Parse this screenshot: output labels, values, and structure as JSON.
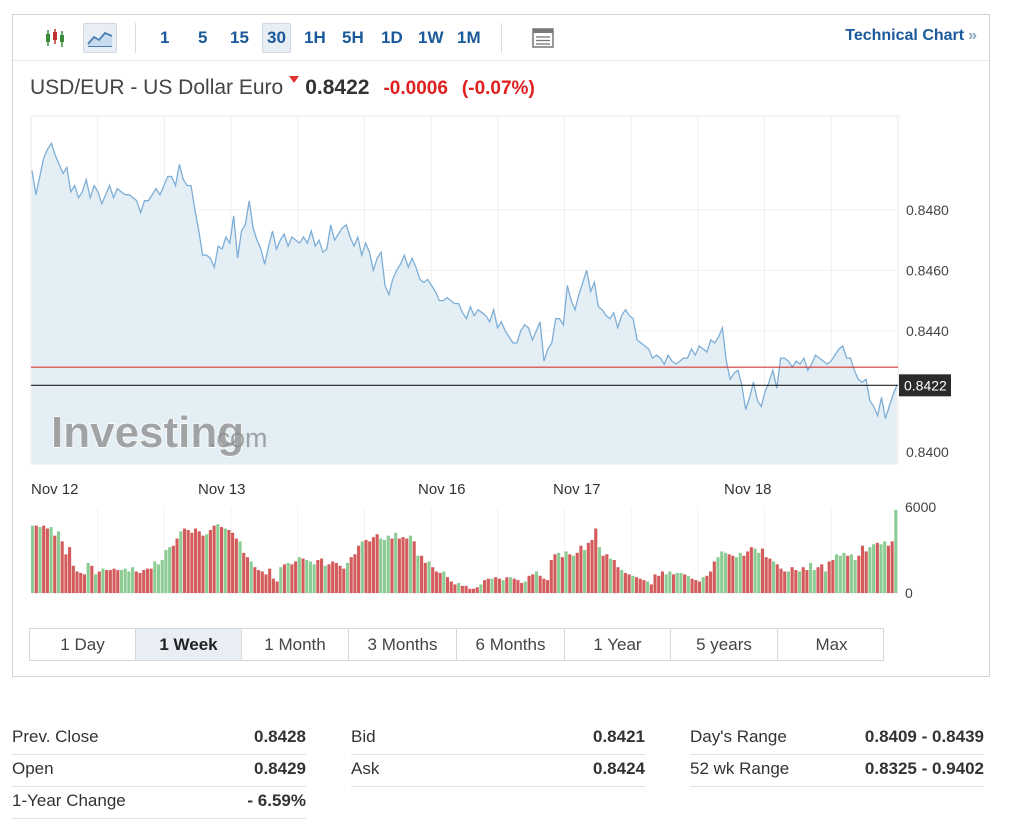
{
  "toolbar": {
    "chart_types": [
      "candlestick-icon",
      "area-chart-icon"
    ],
    "active_chart_type": "area-chart-icon",
    "intervals": [
      "1",
      "5",
      "15",
      "30",
      "1H",
      "5H",
      "1D",
      "1W",
      "1M"
    ],
    "active_interval": "30",
    "extra_icon": "table-icon",
    "technical_chart_label": "Technical Chart",
    "technical_chart_chevron": "»"
  },
  "header": {
    "pair": "USD/EUR - US Dollar Euro",
    "direction": "down",
    "last": "0.8422",
    "change": "-0.0006",
    "change_pct": "(-0.07%)"
  },
  "watermark": {
    "brand": "Investing",
    "suffix": ".com"
  },
  "colors": {
    "line": "#7eaed6",
    "area_fill": "#e4eef5",
    "prev_close_line": "#d33a3a",
    "last_line": "#222222",
    "vol_up": "#8ccc94",
    "vol_down": "#d45b5b",
    "accent": "#1a5a9b",
    "negative": "#e02020"
  },
  "chart_data": {
    "type": "area",
    "x_labels": [
      "Nov 12",
      "Nov 13",
      "Nov 16",
      "Nov 17",
      "Nov 18"
    ],
    "ylim": [
      0.8396,
      0.8511
    ],
    "y_ticks": [
      "0.8480",
      "0.8460",
      "0.8440",
      "0.8400"
    ],
    "y_tick_values": [
      0.848,
      0.846,
      0.844,
      0.84
    ],
    "last_label": "0.8422",
    "last_value": 0.8422,
    "prev_close_value": 0.8428,
    "series": [
      {
        "values": [
          0.8493,
          0.8485,
          0.8491,
          0.8497,
          0.85,
          0.8502,
          0.8498,
          0.8495,
          0.8492,
          0.8494,
          0.8486,
          0.8488,
          0.8484,
          0.8486,
          0.849,
          0.8484,
          0.8488,
          0.8486,
          0.8482,
          0.8485,
          0.8488,
          0.8484,
          0.8487,
          0.8486,
          0.8485,
          0.8485,
          0.8484,
          0.8483,
          0.8479,
          0.8483,
          0.8483,
          0.8485,
          0.8487,
          0.8485,
          0.8488,
          0.8491,
          0.8491,
          0.8488,
          0.8495,
          0.849,
          0.8488,
          0.8488,
          0.848,
          0.8473,
          0.8465,
          0.8465,
          0.8464,
          0.8461,
          0.8468,
          0.8467,
          0.8471,
          0.8469,
          0.8478,
          0.8464,
          0.8473,
          0.8475,
          0.8483,
          0.8474,
          0.847,
          0.8467,
          0.8462,
          0.8468,
          0.8473,
          0.8467,
          0.847,
          0.8472,
          0.8468,
          0.8471,
          0.847,
          0.8469,
          0.8471,
          0.8469,
          0.8473,
          0.8468,
          0.847,
          0.8466,
          0.8467,
          0.8475,
          0.847,
          0.8472,
          0.8474,
          0.8475,
          0.8471,
          0.8468,
          0.8471,
          0.8465,
          0.8469,
          0.8466,
          0.846,
          0.8464,
          0.8466,
          0.8455,
          0.8452,
          0.8457,
          0.846,
          0.8462,
          0.8465,
          0.8461,
          0.8464,
          0.8461,
          0.8457,
          0.8456,
          0.8457,
          0.8455,
          0.8453,
          0.845,
          0.845,
          0.8451,
          0.845,
          0.8449,
          0.8449,
          0.8446,
          0.8444,
          0.8448,
          0.8445,
          0.8447,
          0.8446,
          0.8445,
          0.8443,
          0.8447,
          0.8441,
          0.8443,
          0.844,
          0.8438,
          0.8436,
          0.8436,
          0.844,
          0.8442,
          0.8441,
          0.8437,
          0.844,
          0.8443,
          0.843,
          0.8434,
          0.8436,
          0.8444,
          0.8444,
          0.8442,
          0.8455,
          0.845,
          0.8447,
          0.8452,
          0.8456,
          0.846,
          0.8453,
          0.8456,
          0.8448,
          0.8447,
          0.8445,
          0.8444,
          0.8446,
          0.8441,
          0.8445,
          0.8447,
          0.8445,
          0.8444,
          0.8437,
          0.8436,
          0.8435,
          0.8434,
          0.8431,
          0.8432,
          0.8431,
          0.8429,
          0.8432,
          0.843,
          0.8429,
          0.843,
          0.8431,
          0.8431,
          0.8434,
          0.8432,
          0.8435,
          0.8434,
          0.8433,
          0.8437,
          0.8436,
          0.8438,
          0.8441,
          0.843,
          0.8424,
          0.8426,
          0.8427,
          0.8422,
          0.8414,
          0.8418,
          0.8423,
          0.8417,
          0.8415,
          0.842,
          0.8423,
          0.8427,
          0.8421,
          0.8431,
          0.8431,
          0.843,
          0.8428,
          0.843,
          0.8429,
          0.8431,
          0.8427,
          0.8429,
          0.8432,
          0.8431,
          0.843,
          0.8429,
          0.843,
          0.8432,
          0.8434,
          0.8435,
          0.8431,
          0.8431,
          0.8427,
          0.8424,
          0.8423,
          0.8424,
          0.8417,
          0.8415,
          0.8412,
          0.8418,
          0.8411,
          0.8415,
          0.8419,
          0.8422
        ]
      }
    ],
    "volume": {
      "ylim": [
        0,
        6000
      ],
      "y_ticks": [
        "6000",
        "0"
      ],
      "y_tick_values": [
        6000,
        0
      ],
      "bars": [
        [
          4700,
          "u"
        ],
        [
          4700,
          "d"
        ],
        [
          4600,
          "u"
        ],
        [
          4700,
          "d"
        ],
        [
          4500,
          "d"
        ],
        [
          4600,
          "u"
        ],
        [
          4000,
          "d"
        ],
        [
          4300,
          "u"
        ],
        [
          3600,
          "d"
        ],
        [
          2700,
          "d"
        ],
        [
          3200,
          "d"
        ],
        [
          1900,
          "d"
        ],
        [
          1500,
          "d"
        ],
        [
          1400,
          "d"
        ],
        [
          1300,
          "d"
        ],
        [
          2100,
          "u"
        ],
        [
          1900,
          "d"
        ],
        [
          1300,
          "u"
        ],
        [
          1500,
          "d"
        ],
        [
          1700,
          "u"
        ],
        [
          1600,
          "d"
        ],
        [
          1600,
          "d"
        ],
        [
          1700,
          "d"
        ],
        [
          1600,
          "d"
        ],
        [
          1600,
          "u"
        ],
        [
          1700,
          "u"
        ],
        [
          1500,
          "u"
        ],
        [
          1800,
          "u"
        ],
        [
          1500,
          "d"
        ],
        [
          1400,
          "d"
        ],
        [
          1600,
          "d"
        ],
        [
          1700,
          "d"
        ],
        [
          1700,
          "d"
        ],
        [
          2200,
          "u"
        ],
        [
          2000,
          "u"
        ],
        [
          2300,
          "u"
        ],
        [
          3000,
          "u"
        ],
        [
          3200,
          "u"
        ],
        [
          3300,
          "d"
        ],
        [
          3800,
          "d"
        ],
        [
          4300,
          "u"
        ],
        [
          4500,
          "d"
        ],
        [
          4400,
          "d"
        ],
        [
          4200,
          "d"
        ],
        [
          4500,
          "d"
        ],
        [
          4300,
          "d"
        ],
        [
          4000,
          "d"
        ],
        [
          4100,
          "u"
        ],
        [
          4400,
          "d"
        ],
        [
          4700,
          "d"
        ],
        [
          4800,
          "u"
        ],
        [
          4600,
          "d"
        ],
        [
          4500,
          "u"
        ],
        [
          4400,
          "d"
        ],
        [
          4200,
          "d"
        ],
        [
          3800,
          "d"
        ],
        [
          3600,
          "u"
        ],
        [
          2800,
          "d"
        ],
        [
          2500,
          "d"
        ],
        [
          2200,
          "u"
        ],
        [
          1800,
          "d"
        ],
        [
          1600,
          "d"
        ],
        [
          1500,
          "d"
        ],
        [
          1300,
          "d"
        ],
        [
          1700,
          "d"
        ],
        [
          1000,
          "d"
        ],
        [
          800,
          "d"
        ],
        [
          1800,
          "u"
        ],
        [
          2000,
          "d"
        ],
        [
          2100,
          "u"
        ],
        [
          2000,
          "d"
        ],
        [
          2200,
          "d"
        ],
        [
          2500,
          "u"
        ],
        [
          2400,
          "d"
        ],
        [
          2300,
          "u"
        ],
        [
          2200,
          "u"
        ],
        [
          2000,
          "u"
        ],
        [
          2300,
          "d"
        ],
        [
          2400,
          "d"
        ],
        [
          1900,
          "u"
        ],
        [
          2000,
          "d"
        ],
        [
          2200,
          "d"
        ],
        [
          2100,
          "d"
        ],
        [
          1900,
          "d"
        ],
        [
          1700,
          "d"
        ],
        [
          2100,
          "u"
        ],
        [
          2500,
          "d"
        ],
        [
          2700,
          "d"
        ],
        [
          3300,
          "d"
        ],
        [
          3600,
          "u"
        ],
        [
          3700,
          "d"
        ],
        [
          3600,
          "d"
        ],
        [
          3900,
          "d"
        ],
        [
          4100,
          "d"
        ],
        [
          3800,
          "u"
        ],
        [
          3700,
          "u"
        ],
        [
          4000,
          "u"
        ],
        [
          3800,
          "d"
        ],
        [
          4200,
          "u"
        ],
        [
          3800,
          "d"
        ],
        [
          3900,
          "d"
        ],
        [
          3800,
          "d"
        ],
        [
          4000,
          "u"
        ],
        [
          3600,
          "d"
        ],
        [
          2600,
          "u"
        ],
        [
          2600,
          "d"
        ],
        [
          2100,
          "d"
        ],
        [
          2200,
          "u"
        ],
        [
          1800,
          "d"
        ],
        [
          1500,
          "d"
        ],
        [
          1400,
          "d"
        ],
        [
          1500,
          "u"
        ],
        [
          1100,
          "d"
        ],
        [
          800,
          "d"
        ],
        [
          600,
          "d"
        ],
        [
          700,
          "u"
        ],
        [
          500,
          "d"
        ],
        [
          500,
          "d"
        ],
        [
          300,
          "d"
        ],
        [
          300,
          "d"
        ],
        [
          400,
          "d"
        ],
        [
          600,
          "u"
        ],
        [
          900,
          "d"
        ],
        [
          1000,
          "d"
        ],
        [
          1000,
          "u"
        ],
        [
          1100,
          "d"
        ],
        [
          1000,
          "d"
        ],
        [
          900,
          "u"
        ],
        [
          1100,
          "d"
        ],
        [
          1100,
          "u"
        ],
        [
          1000,
          "d"
        ],
        [
          900,
          "d"
        ],
        [
          700,
          "d"
        ],
        [
          800,
          "u"
        ],
        [
          1200,
          "d"
        ],
        [
          1300,
          "d"
        ],
        [
          1500,
          "u"
        ],
        [
          1200,
          "d"
        ],
        [
          1000,
          "d"
        ],
        [
          900,
          "d"
        ],
        [
          2300,
          "d"
        ],
        [
          2700,
          "d"
        ],
        [
          2800,
          "u"
        ],
        [
          2500,
          "d"
        ],
        [
          2900,
          "u"
        ],
        [
          2700,
          "d"
        ],
        [
          2600,
          "u"
        ],
        [
          2800,
          "d"
        ],
        [
          3300,
          "d"
        ],
        [
          3000,
          "u"
        ],
        [
          3500,
          "d"
        ],
        [
          3700,
          "d"
        ],
        [
          4500,
          "d"
        ],
        [
          3200,
          "u"
        ],
        [
          2600,
          "d"
        ],
        [
          2700,
          "d"
        ],
        [
          2400,
          "u"
        ],
        [
          2300,
          "d"
        ],
        [
          1800,
          "d"
        ],
        [
          1600,
          "u"
        ],
        [
          1400,
          "d"
        ],
        [
          1300,
          "d"
        ],
        [
          1200,
          "u"
        ],
        [
          1100,
          "d"
        ],
        [
          1000,
          "d"
        ],
        [
          900,
          "d"
        ],
        [
          800,
          "u"
        ],
        [
          600,
          "d"
        ],
        [
          1300,
          "d"
        ],
        [
          1200,
          "d"
        ],
        [
          1500,
          "d"
        ],
        [
          1300,
          "u"
        ],
        [
          1500,
          "u"
        ],
        [
          1300,
          "d"
        ],
        [
          1400,
          "u"
        ],
        [
          1400,
          "u"
        ],
        [
          1300,
          "d"
        ],
        [
          1200,
          "u"
        ],
        [
          1000,
          "d"
        ],
        [
          900,
          "d"
        ],
        [
          800,
          "d"
        ],
        [
          1100,
          "u"
        ],
        [
          1200,
          "d"
        ],
        [
          1500,
          "d"
        ],
        [
          2200,
          "d"
        ],
        [
          2500,
          "u"
        ],
        [
          2900,
          "u"
        ],
        [
          2800,
          "u"
        ],
        [
          2700,
          "d"
        ],
        [
          2600,
          "d"
        ],
        [
          2500,
          "u"
        ],
        [
          2800,
          "u"
        ],
        [
          2600,
          "d"
        ],
        [
          2900,
          "d"
        ],
        [
          3200,
          "d"
        ],
        [
          3100,
          "u"
        ],
        [
          2800,
          "u"
        ],
        [
          3100,
          "d"
        ],
        [
          2500,
          "d"
        ],
        [
          2400,
          "d"
        ],
        [
          2200,
          "u"
        ],
        [
          2000,
          "d"
        ],
        [
          1700,
          "d"
        ],
        [
          1500,
          "d"
        ],
        [
          1500,
          "u"
        ],
        [
          1800,
          "d"
        ],
        [
          1600,
          "d"
        ],
        [
          1500,
          "u"
        ],
        [
          1800,
          "d"
        ],
        [
          1600,
          "d"
        ],
        [
          2100,
          "u"
        ],
        [
          1600,
          "u"
        ],
        [
          1800,
          "d"
        ],
        [
          2000,
          "d"
        ],
        [
          1500,
          "u"
        ],
        [
          2200,
          "d"
        ],
        [
          2300,
          "d"
        ],
        [
          2700,
          "u"
        ],
        [
          2600,
          "u"
        ],
        [
          2800,
          "u"
        ],
        [
          2600,
          "d"
        ],
        [
          2700,
          "u"
        ],
        [
          2300,
          "u"
        ],
        [
          2600,
          "d"
        ],
        [
          3300,
          "d"
        ],
        [
          2900,
          "d"
        ],
        [
          3200,
          "u"
        ],
        [
          3400,
          "u"
        ],
        [
          3500,
          "d"
        ],
        [
          3400,
          "u"
        ],
        [
          3600,
          "u"
        ],
        [
          3300,
          "d"
        ],
        [
          3600,
          "d"
        ],
        [
          5800,
          "u"
        ]
      ]
    }
  },
  "periods": [
    "1 Day",
    "1 Week",
    "1 Month",
    "3 Months",
    "6 Months",
    "1 Year",
    "5 years",
    "Max"
  ],
  "active_period": "1 Week",
  "stats": {
    "col1": [
      {
        "label": "Prev. Close",
        "value": "0.8428"
      },
      {
        "label": "Open",
        "value": "0.8429"
      },
      {
        "label": "1-Year Change",
        "value": "- 6.59%"
      }
    ],
    "col2": [
      {
        "label": "Bid",
        "value": "0.8421"
      },
      {
        "label": "Ask",
        "value": "0.8424"
      }
    ],
    "col3": [
      {
        "label": "Day's Range",
        "value": "0.8409 - 0.8439"
      },
      {
        "label": "52 wk Range",
        "value": "0.8325 - 0.9402"
      }
    ]
  }
}
